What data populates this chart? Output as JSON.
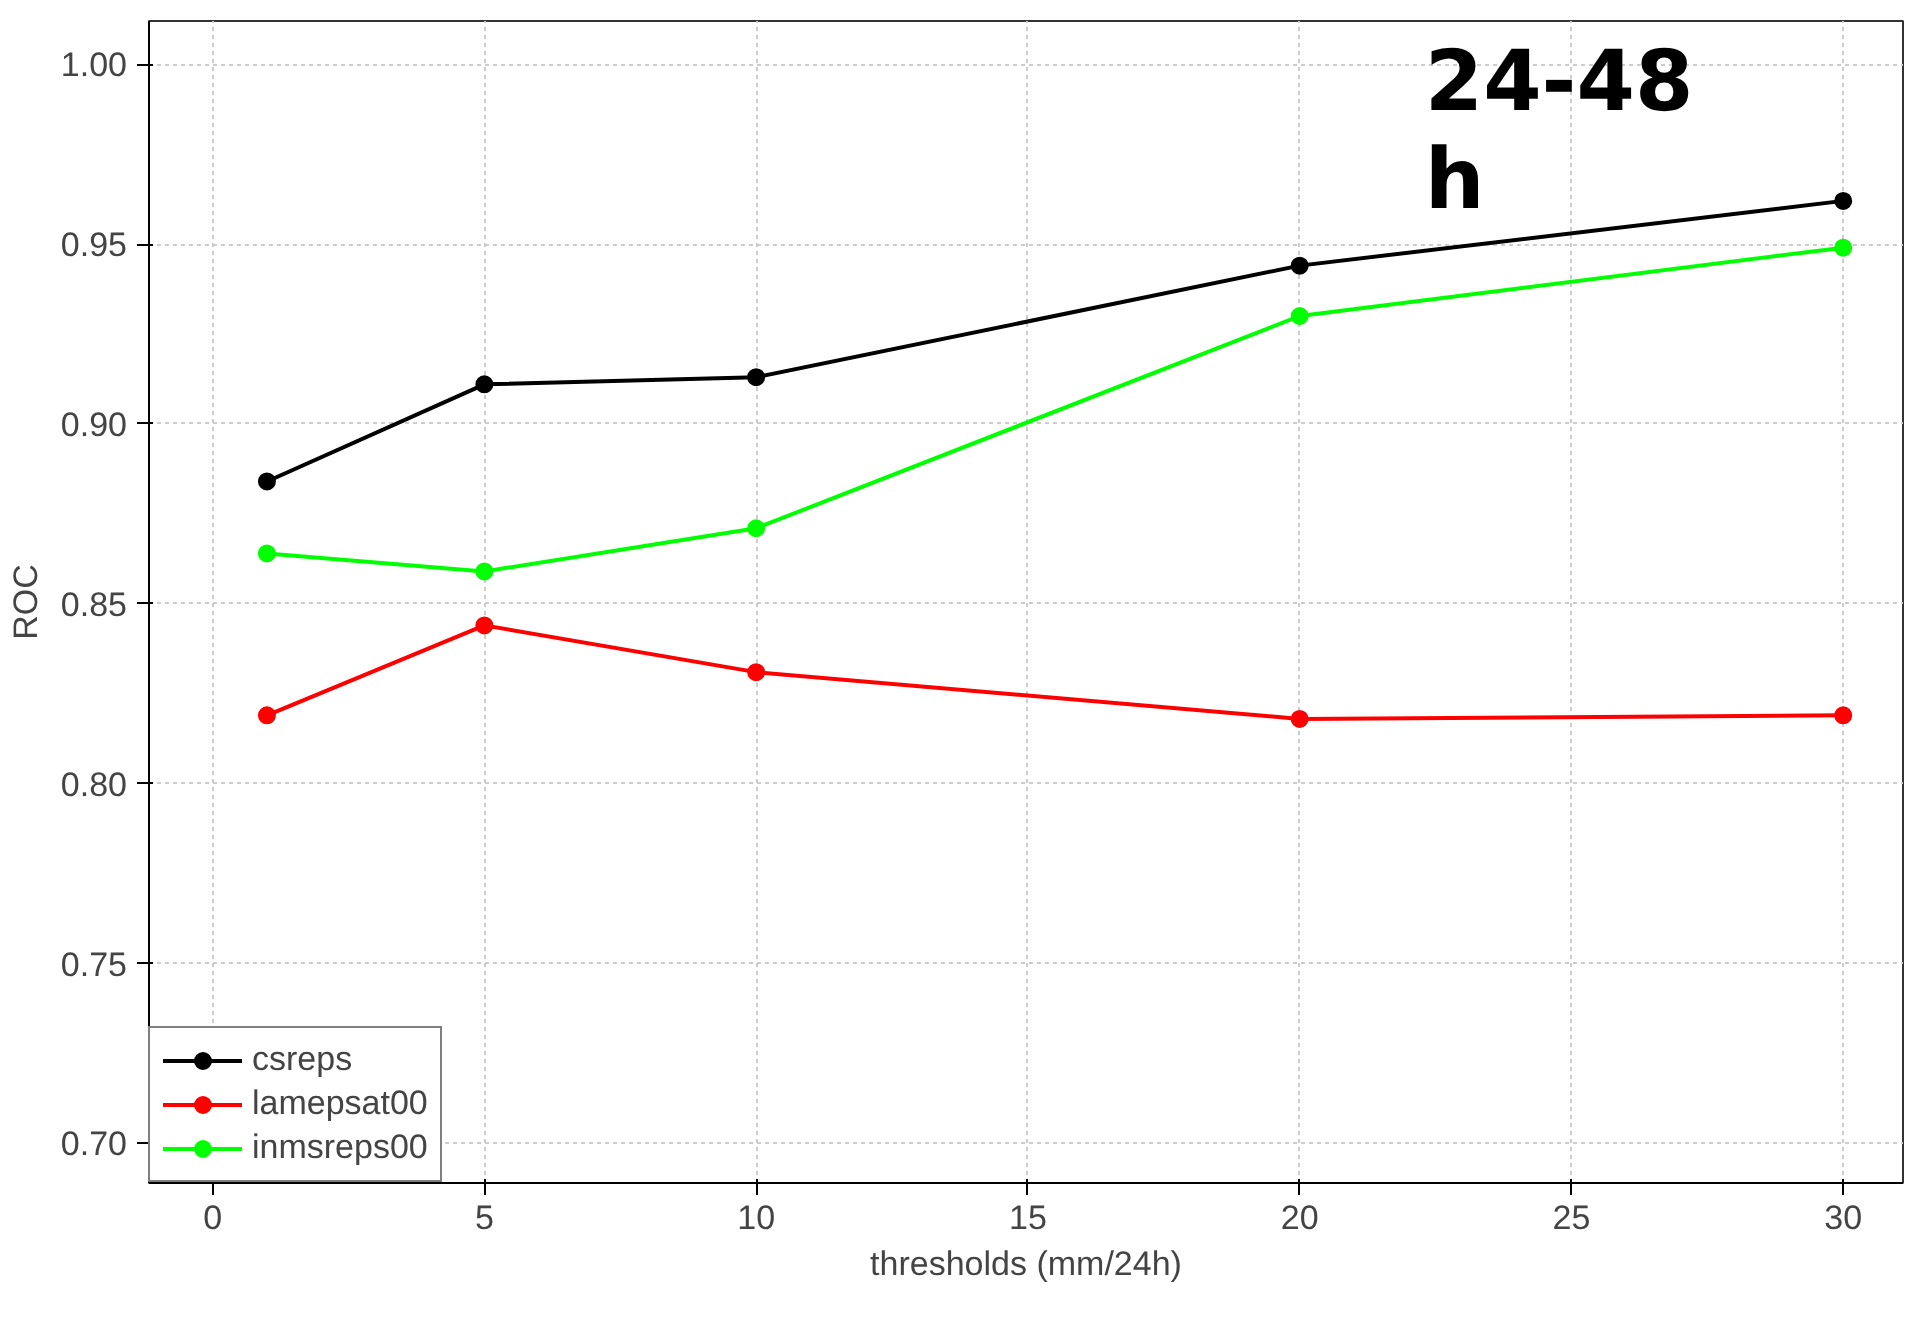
{
  "chart_data": {
    "type": "line",
    "xlabel": "thresholds (mm/24h)",
    "ylabel": "ROC",
    "x": [
      1,
      5,
      10,
      20,
      30
    ],
    "series": [
      {
        "name": "csreps",
        "color": "#000000",
        "values": [
          0.884,
          0.911,
          0.913,
          0.944,
          0.962
        ]
      },
      {
        "name": "lamepsat00",
        "color": "#ff0000",
        "values": [
          0.819,
          0.844,
          0.831,
          0.818,
          0.819
        ]
      },
      {
        "name": "inmsreps00",
        "color": "#00ff00",
        "values": [
          0.864,
          0.859,
          0.871,
          0.93,
          0.949
        ]
      }
    ],
    "xlim": [
      -1.17,
      31.1
    ],
    "ylim": [
      0.689,
      1.012
    ],
    "xticks": [
      0,
      5,
      10,
      15,
      20,
      25,
      30
    ],
    "yticks": [
      {
        "value": 0.7,
        "label": "0.70"
      },
      {
        "value": 0.75,
        "label": "0.75"
      },
      {
        "value": 0.8,
        "label": "0.80"
      },
      {
        "value": 0.85,
        "label": "0.85"
      },
      {
        "value": 0.9,
        "label": "0.90"
      },
      {
        "value": 0.95,
        "label": "0.95"
      },
      {
        "value": 1.0,
        "label": "1.00"
      }
    ],
    "annotations": [
      "24-48\nh"
    ],
    "grid": true,
    "legend": "bottom left",
    "marker": "circle",
    "line_style": "solid"
  }
}
